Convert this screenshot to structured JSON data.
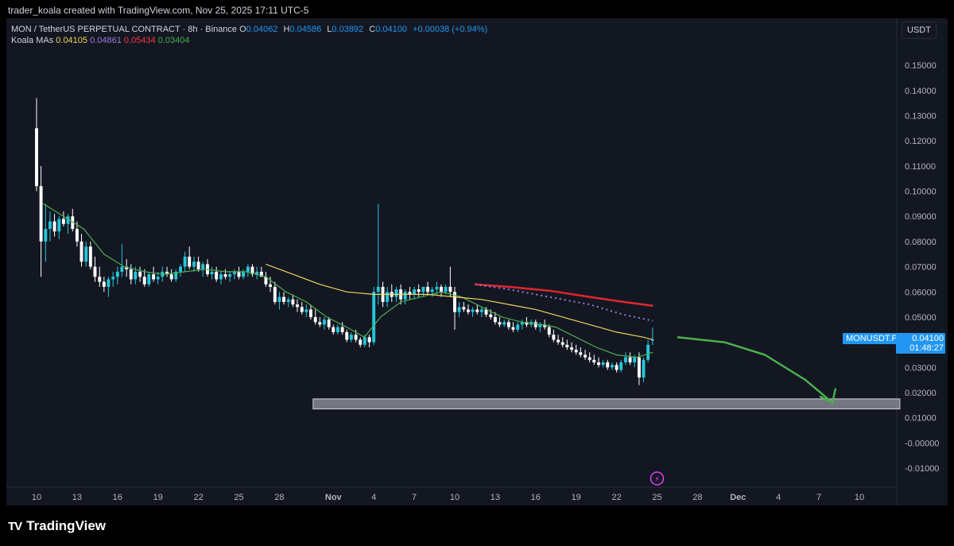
{
  "caption": "trader_koala created with TradingView.com, Nov 25, 2025 17:11 UTC-5",
  "legend": {
    "symbol": "MON / TetherUS PERPETUAL CONTRACT · 8h · Binance",
    "o_label": "O",
    "o": "0.04062",
    "h_label": "H",
    "h": "0.04586",
    "l_label": "L",
    "l": "0.03892",
    "c_label": "C",
    "c": "0.04100",
    "change": "+0.00038 (+0.94%)",
    "ma_label": "Koala MAs",
    "ma_values": [
      "0.04105",
      "0.04861",
      "0.05434",
      "0.03404"
    ]
  },
  "currency": "USDT",
  "price_label": {
    "ticker": "MONUSDT.P",
    "price": "0.04100",
    "countdown": "01:48:27"
  },
  "footer": {
    "brand": "TradingView",
    "mark": "TV"
  },
  "colors": {
    "bg": "#131722",
    "up": "#26c6da",
    "down": "#ffffff",
    "ma_fast": "#4caf50",
    "ma_slow": "#f0d25a",
    "ma_red": "#e0262d",
    "ma_dotted": "#9c7ad8",
    "arrow": "#4caf50",
    "zone": "#9598a1"
  },
  "chart_data": {
    "type": "candlestick",
    "ylim": [
      -0.015,
      0.16
    ],
    "y_ticks": [
      "0.15000",
      "0.14000",
      "0.13000",
      "0.12000",
      "0.11000",
      "0.10000",
      "0.09000",
      "0.08000",
      "0.07000",
      "0.06000",
      "0.05000",
      "0.04000",
      "0.03000",
      "0.02000",
      "0.01000",
      "-0.00000",
      "-0.01000"
    ],
    "x_ticks": [
      "10",
      "13",
      "16",
      "19",
      "22",
      "25",
      "28",
      "Nov",
      "4",
      "7",
      "10",
      "13",
      "16",
      "19",
      "22",
      "25",
      "28",
      "Dec",
      "4",
      "7",
      "10"
    ],
    "x_tick_days": [
      10,
      13,
      16,
      19,
      22,
      25,
      28,
      32,
      35,
      38,
      41,
      44,
      47,
      50,
      53,
      56,
      59,
      62,
      65,
      68,
      71
    ],
    "candles": [
      [
        10,
        0.125,
        0.137,
        0.1,
        0.102
      ],
      [
        10.33,
        0.102,
        0.11,
        0.066,
        0.08
      ],
      [
        10.67,
        0.08,
        0.095,
        0.072,
        0.085
      ],
      [
        11,
        0.085,
        0.092,
        0.08,
        0.088
      ],
      [
        11.33,
        0.088,
        0.091,
        0.082,
        0.084
      ],
      [
        11.67,
        0.084,
        0.09,
        0.081,
        0.089
      ],
      [
        12,
        0.089,
        0.092,
        0.086,
        0.087
      ],
      [
        12.33,
        0.087,
        0.091,
        0.083,
        0.09
      ],
      [
        12.67,
        0.09,
        0.093,
        0.084,
        0.085
      ],
      [
        13,
        0.085,
        0.088,
        0.078,
        0.08
      ],
      [
        13.33,
        0.08,
        0.083,
        0.07,
        0.072
      ],
      [
        13.67,
        0.072,
        0.08,
        0.07,
        0.078
      ],
      [
        14,
        0.078,
        0.08,
        0.069,
        0.07
      ],
      [
        14.33,
        0.07,
        0.074,
        0.064,
        0.066
      ],
      [
        14.67,
        0.066,
        0.07,
        0.062,
        0.064
      ],
      [
        15,
        0.064,
        0.066,
        0.06,
        0.062
      ],
      [
        15.33,
        0.062,
        0.066,
        0.058,
        0.065
      ],
      [
        15.67,
        0.065,
        0.068,
        0.062,
        0.066
      ],
      [
        16,
        0.066,
        0.07,
        0.063,
        0.068
      ],
      [
        16.33,
        0.068,
        0.079,
        0.066,
        0.07
      ],
      [
        16.67,
        0.07,
        0.073,
        0.066,
        0.069
      ],
      [
        17,
        0.069,
        0.071,
        0.063,
        0.065
      ],
      [
        17.33,
        0.065,
        0.07,
        0.063,
        0.068
      ],
      [
        17.67,
        0.068,
        0.07,
        0.064,
        0.066
      ],
      [
        18,
        0.066,
        0.069,
        0.062,
        0.063
      ],
      [
        18.33,
        0.063,
        0.068,
        0.062,
        0.067
      ],
      [
        18.67,
        0.067,
        0.07,
        0.064,
        0.065
      ],
      [
        19,
        0.065,
        0.068,
        0.063,
        0.066
      ],
      [
        19.33,
        0.066,
        0.07,
        0.064,
        0.068
      ],
      [
        19.67,
        0.068,
        0.07,
        0.066,
        0.067
      ],
      [
        20,
        0.067,
        0.069,
        0.064,
        0.065
      ],
      [
        20.33,
        0.065,
        0.069,
        0.064,
        0.068
      ],
      [
        20.67,
        0.068,
        0.071,
        0.066,
        0.07
      ],
      [
        21,
        0.07,
        0.076,
        0.068,
        0.074
      ],
      [
        21.33,
        0.074,
        0.078,
        0.069,
        0.07
      ],
      [
        21.67,
        0.07,
        0.074,
        0.068,
        0.072
      ],
      [
        22,
        0.072,
        0.074,
        0.068,
        0.069
      ],
      [
        22.33,
        0.069,
        0.072,
        0.066,
        0.071
      ],
      [
        22.67,
        0.071,
        0.073,
        0.066,
        0.067
      ],
      [
        23,
        0.067,
        0.07,
        0.065,
        0.068
      ],
      [
        23.33,
        0.068,
        0.07,
        0.064,
        0.065
      ],
      [
        23.67,
        0.065,
        0.068,
        0.063,
        0.067
      ],
      [
        24,
        0.067,
        0.069,
        0.065,
        0.066
      ],
      [
        24.33,
        0.066,
        0.068,
        0.064,
        0.067
      ],
      [
        24.67,
        0.067,
        0.069,
        0.065,
        0.068
      ],
      [
        25,
        0.068,
        0.07,
        0.065,
        0.066
      ],
      [
        25.33,
        0.066,
        0.069,
        0.065,
        0.068
      ],
      [
        25.67,
        0.068,
        0.071,
        0.066,
        0.07
      ],
      [
        26,
        0.07,
        0.071,
        0.066,
        0.067
      ],
      [
        26.33,
        0.067,
        0.07,
        0.065,
        0.068
      ],
      [
        26.67,
        0.068,
        0.07,
        0.066,
        0.066
      ],
      [
        27,
        0.066,
        0.068,
        0.062,
        0.063
      ],
      [
        27.33,
        0.063,
        0.066,
        0.06,
        0.062
      ],
      [
        27.67,
        0.062,
        0.064,
        0.055,
        0.056
      ],
      [
        28,
        0.056,
        0.06,
        0.053,
        0.058
      ],
      [
        28.33,
        0.058,
        0.06,
        0.055,
        0.056
      ],
      [
        28.67,
        0.056,
        0.058,
        0.054,
        0.057
      ],
      [
        29,
        0.057,
        0.059,
        0.054,
        0.055
      ],
      [
        29.33,
        0.055,
        0.057,
        0.052,
        0.054
      ],
      [
        29.67,
        0.054,
        0.056,
        0.051,
        0.052
      ],
      [
        30,
        0.052,
        0.055,
        0.05,
        0.053
      ],
      [
        30.33,
        0.053,
        0.055,
        0.049,
        0.05
      ],
      [
        30.67,
        0.05,
        0.053,
        0.047,
        0.048
      ],
      [
        31,
        0.048,
        0.05,
        0.046,
        0.047
      ],
      [
        31.33,
        0.047,
        0.05,
        0.045,
        0.049
      ],
      [
        31.67,
        0.049,
        0.05,
        0.045,
        0.046
      ],
      [
        32,
        0.046,
        0.047,
        0.043,
        0.044
      ],
      [
        32.33,
        0.044,
        0.047,
        0.043,
        0.046
      ],
      [
        32.67,
        0.046,
        0.048,
        0.043,
        0.044
      ],
      [
        33,
        0.044,
        0.045,
        0.04,
        0.041
      ],
      [
        33.33,
        0.041,
        0.044,
        0.04,
        0.043
      ],
      [
        33.67,
        0.043,
        0.045,
        0.04,
        0.041
      ],
      [
        34,
        0.041,
        0.042,
        0.038,
        0.039
      ],
      [
        34.33,
        0.039,
        0.043,
        0.038,
        0.042
      ],
      [
        34.67,
        0.042,
        0.043,
        0.038,
        0.04
      ],
      [
        35,
        0.04,
        0.062,
        0.039,
        0.06
      ],
      [
        35.33,
        0.06,
        0.095,
        0.055,
        0.062
      ],
      [
        35.67,
        0.062,
        0.064,
        0.054,
        0.056
      ],
      [
        36,
        0.056,
        0.062,
        0.054,
        0.06
      ],
      [
        36.33,
        0.06,
        0.063,
        0.056,
        0.058
      ],
      [
        36.67,
        0.058,
        0.062,
        0.056,
        0.061
      ],
      [
        37,
        0.061,
        0.063,
        0.055,
        0.057
      ],
      [
        37.33,
        0.057,
        0.061,
        0.055,
        0.06
      ],
      [
        37.67,
        0.06,
        0.062,
        0.057,
        0.059
      ],
      [
        38,
        0.059,
        0.062,
        0.057,
        0.061
      ],
      [
        38.33,
        0.061,
        0.063,
        0.058,
        0.06
      ],
      [
        38.67,
        0.06,
        0.062,
        0.058,
        0.062
      ],
      [
        39,
        0.062,
        0.064,
        0.059,
        0.06
      ],
      [
        39.33,
        0.06,
        0.062,
        0.058,
        0.061
      ],
      [
        39.67,
        0.061,
        0.064,
        0.059,
        0.062
      ],
      [
        40,
        0.062,
        0.063,
        0.058,
        0.06
      ],
      [
        40.33,
        0.06,
        0.063,
        0.059,
        0.062
      ],
      [
        40.67,
        0.062,
        0.07,
        0.058,
        0.06
      ],
      [
        41,
        0.06,
        0.062,
        0.045,
        0.052
      ],
      [
        41.33,
        0.052,
        0.056,
        0.05,
        0.054
      ],
      [
        41.67,
        0.054,
        0.056,
        0.052,
        0.053
      ],
      [
        42,
        0.053,
        0.055,
        0.051,
        0.052
      ],
      [
        42.33,
        0.052,
        0.054,
        0.05,
        0.053
      ],
      [
        42.67,
        0.053,
        0.055,
        0.051,
        0.052
      ],
      [
        43,
        0.052,
        0.054,
        0.05,
        0.053
      ],
      [
        43.33,
        0.053,
        0.054,
        0.05,
        0.051
      ],
      [
        43.67,
        0.051,
        0.053,
        0.049,
        0.05
      ],
      [
        44,
        0.05,
        0.052,
        0.047,
        0.048
      ],
      [
        44.33,
        0.048,
        0.05,
        0.046,
        0.047
      ],
      [
        44.67,
        0.047,
        0.049,
        0.046,
        0.048
      ],
      [
        45,
        0.048,
        0.049,
        0.045,
        0.046
      ],
      [
        45.33,
        0.046,
        0.048,
        0.044,
        0.045
      ],
      [
        45.67,
        0.045,
        0.048,
        0.044,
        0.047
      ],
      [
        46,
        0.047,
        0.049,
        0.045,
        0.048
      ],
      [
        46.33,
        0.048,
        0.05,
        0.046,
        0.047
      ],
      [
        46.67,
        0.047,
        0.049,
        0.046,
        0.048
      ],
      [
        47,
        0.048,
        0.049,
        0.045,
        0.046
      ],
      [
        47.33,
        0.046,
        0.048,
        0.044,
        0.047
      ],
      [
        47.67,
        0.047,
        0.049,
        0.045,
        0.046
      ],
      [
        48,
        0.046,
        0.047,
        0.042,
        0.043
      ],
      [
        48.33,
        0.043,
        0.045,
        0.04,
        0.041
      ],
      [
        48.67,
        0.041,
        0.043,
        0.039,
        0.04
      ],
      [
        49,
        0.04,
        0.042,
        0.038,
        0.039
      ],
      [
        49.33,
        0.039,
        0.041,
        0.037,
        0.038
      ],
      [
        49.67,
        0.038,
        0.04,
        0.036,
        0.037
      ],
      [
        50,
        0.037,
        0.039,
        0.035,
        0.036
      ],
      [
        50.33,
        0.036,
        0.038,
        0.034,
        0.035
      ],
      [
        50.67,
        0.035,
        0.037,
        0.033,
        0.034
      ],
      [
        51,
        0.034,
        0.036,
        0.032,
        0.033
      ],
      [
        51.33,
        0.033,
        0.035,
        0.031,
        0.032
      ],
      [
        51.67,
        0.032,
        0.034,
        0.03,
        0.031
      ],
      [
        52,
        0.031,
        0.033,
        0.03,
        0.032
      ],
      [
        52.33,
        0.032,
        0.033,
        0.029,
        0.03
      ],
      [
        52.67,
        0.03,
        0.032,
        0.029,
        0.031
      ],
      [
        53,
        0.031,
        0.032,
        0.028,
        0.029
      ],
      [
        53.33,
        0.029,
        0.033,
        0.028,
        0.032
      ],
      [
        53.67,
        0.032,
        0.036,
        0.031,
        0.034
      ],
      [
        54,
        0.034,
        0.036,
        0.031,
        0.032
      ],
      [
        54.33,
        0.032,
        0.035,
        0.03,
        0.034
      ],
      [
        54.67,
        0.034,
        0.036,
        0.023,
        0.026
      ],
      [
        55,
        0.026,
        0.034,
        0.024,
        0.033
      ],
      [
        55.33,
        0.033,
        0.041,
        0.032,
        0.039
      ],
      [
        55.67,
        0.04062,
        0.04586,
        0.03892,
        0.041
      ]
    ],
    "ma_fast": [
      [
        10.5,
        0.095
      ],
      [
        12,
        0.09
      ],
      [
        13.5,
        0.085
      ],
      [
        15,
        0.075
      ],
      [
        16.5,
        0.07
      ],
      [
        18,
        0.068
      ],
      [
        19.5,
        0.067
      ],
      [
        21,
        0.068
      ],
      [
        22.5,
        0.069
      ],
      [
        24,
        0.068
      ],
      [
        25.5,
        0.068
      ],
      [
        27,
        0.066
      ],
      [
        28.5,
        0.06
      ],
      [
        30,
        0.056
      ],
      [
        31.5,
        0.05
      ],
      [
        33,
        0.046
      ],
      [
        34.3,
        0.042
      ],
      [
        35.5,
        0.05
      ],
      [
        37,
        0.056
      ],
      [
        38.5,
        0.058
      ],
      [
        40,
        0.06
      ],
      [
        41.5,
        0.058
      ],
      [
        43,
        0.054
      ],
      [
        44.5,
        0.05
      ],
      [
        46,
        0.048
      ],
      [
        47.5,
        0.047
      ],
      [
        48.5,
        0.046
      ],
      [
        50,
        0.042
      ],
      [
        51.5,
        0.038
      ],
      [
        53,
        0.035
      ],
      [
        54.5,
        0.034
      ],
      [
        55.7,
        0.036
      ]
    ],
    "ma_slow": [
      [
        27,
        0.071
      ],
      [
        29,
        0.067
      ],
      [
        31,
        0.063
      ],
      [
        33,
        0.06
      ],
      [
        35,
        0.059
      ],
      [
        37,
        0.059
      ],
      [
        39,
        0.059
      ],
      [
        41,
        0.058
      ],
      [
        43,
        0.057
      ],
      [
        45,
        0.055
      ],
      [
        47,
        0.053
      ],
      [
        49,
        0.05
      ],
      [
        51,
        0.047
      ],
      [
        53,
        0.044
      ],
      [
        55,
        0.042
      ],
      [
        55.7,
        0.041
      ]
    ],
    "ma_red": [
      [
        42.5,
        0.063
      ],
      [
        45,
        0.062
      ],
      [
        48,
        0.0605
      ],
      [
        51,
        0.058
      ],
      [
        53.5,
        0.056
      ],
      [
        55.7,
        0.0545
      ]
    ],
    "ma_dotted": [
      [
        42.5,
        0.063
      ],
      [
        45,
        0.061
      ],
      [
        48,
        0.058
      ],
      [
        51,
        0.055
      ],
      [
        53.5,
        0.051
      ],
      [
        55.7,
        0.0485
      ]
    ],
    "zone": {
      "x0": 30.5,
      "x1": 74,
      "y0": 0.0135,
      "y1": 0.0175
    },
    "arrow": [
      [
        57.5,
        0.042
      ],
      [
        61,
        0.04
      ],
      [
        64,
        0.035
      ],
      [
        67,
        0.025
      ],
      [
        69,
        0.016
      ]
    ]
  }
}
